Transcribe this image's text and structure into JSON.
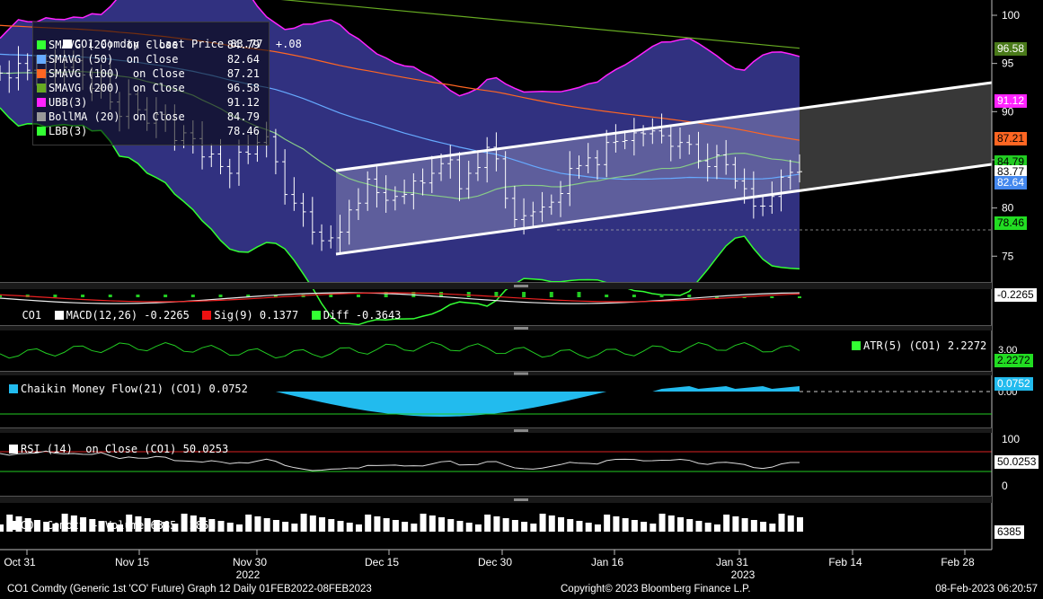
{
  "legend": {
    "title_swatch_color": "#ffffff",
    "title": "CO1 Comdty - Last Price",
    "title_value": "83.77",
    "title_change": "+.08",
    "rows": [
      {
        "label": "SMAVG (20)  on Close",
        "value": "84.79",
        "color": "#33ff33"
      },
      {
        "label": "SMAVG (50)  on Close",
        "value": "82.64",
        "color": "#66aaff"
      },
      {
        "label": "SMAVG (100)  on Close",
        "value": "87.21",
        "color": "#ff6622"
      },
      {
        "label": "SMAVG (200)  on Close",
        "value": "96.58",
        "color": "#66aa22"
      },
      {
        "label": "UBB(3)",
        "value": "91.12",
        "color": "#ff22ff"
      },
      {
        "label": "BollMA (20)  on Close",
        "value": "84.79",
        "color": "#999999"
      },
      {
        "label": "LBB(3)",
        "value": "78.46",
        "color": "#33ff33"
      }
    ]
  },
  "price_tags": [
    {
      "text": "96.58",
      "value": 96.58,
      "bg": "#4a7a1a",
      "fg": "#ffffff"
    },
    {
      "text": "91.12",
      "value": 91.12,
      "bg": "#ff22ff",
      "fg": "#ffffff"
    },
    {
      "text": "87.21",
      "value": 87.21,
      "bg": "#ff6622",
      "fg": "#000000"
    },
    {
      "text": "84.79",
      "value": 84.79,
      "bg": "#22cc22",
      "fg": "#000000"
    },
    {
      "text": "83.77",
      "value": 83.77,
      "bg": "#ffffff",
      "fg": "#000000"
    },
    {
      "text": "82.64",
      "value": 82.64,
      "bg": "#4488ee",
      "fg": "#ffffff"
    },
    {
      "text": "78.46",
      "value": 78.46,
      "bg": "#22dd22",
      "fg": "#000000"
    }
  ],
  "panes": {
    "macd": {
      "label": "CO1",
      "macd": "MACD(12,26) -0.2265",
      "sig": "Sig(9) 0.1377",
      "diff": "Diff -0.3643",
      "tag": "-0.2265"
    },
    "atr": {
      "label": "ATR(5) (CO1) 2.2272",
      "tag": "2.2272",
      "tick": "3.00"
    },
    "cmf": {
      "label": "Chaikin Money Flow(21) (CO1) 0.0752",
      "tag": "0.0752",
      "tick": "0.00"
    },
    "rsi": {
      "label": "RSI (14)  on Close (CO1) 50.0253",
      "tag": "50.0253"
    },
    "volume": {
      "label": "CO1 Comdty - Volume 6385 .285M",
      "tag": "6385"
    }
  },
  "footer": {
    "left": "CO1 Comdty (Generic 1st 'CO' Future) Graph 12  Daily 01FEB2022-08FEB2023",
    "center": "Copyright© 2023 Bloomberg Finance L.P.",
    "right": "08-Feb-2023 06:20:57"
  },
  "chart_data": {
    "type": "line",
    "title": "CO1 Comdty - Last Price",
    "x_tick_labels": [
      "Oct 31",
      "Nov 15",
      "Nov 30",
      "Dec 15",
      "Dec 30",
      "Jan 16",
      "Jan 31",
      "Feb 14",
      "Feb 28"
    ],
    "x_year_labels": [
      "2022",
      "2023"
    ],
    "y_tick_labels": [
      "100",
      "95",
      "90",
      "85",
      "80",
      "75"
    ],
    "ylim": [
      72,
      101
    ],
    "rsi_ticks": [
      "100",
      "50",
      "0"
    ],
    "close": [
      94.0,
      93.5,
      95.0,
      94.3,
      93.5,
      95.2,
      94.0,
      94.6,
      95.3,
      93.8,
      92.4,
      93.6,
      91.0,
      89.5,
      91.8,
      90.2,
      88.8,
      89.7,
      89.2,
      87.0,
      87.8,
      87.2,
      85.3,
      85.6,
      84.3,
      83.6,
      85.8,
      85.6,
      86.8,
      87.4,
      84.8,
      81.4,
      80.5,
      79.6,
      77.5,
      76.6,
      76.9,
      77.5,
      79.8,
      80.5,
      83.0,
      81.6,
      80.8,
      81.2,
      81.4,
      82.8,
      82.6,
      83.6,
      84.6,
      85.0,
      82.0,
      83.6,
      84.2,
      86.3,
      85.1,
      81.0,
      78.8,
      79.2,
      79.6,
      80.1,
      80.6,
      81.5,
      84.1,
      84.4,
      85.2,
      84.5,
      86.8,
      86.9,
      87.0,
      87.8,
      87.7,
      88.0,
      87.5,
      86.4,
      86.8,
      86.6,
      84.9,
      84.3,
      85.5,
      84.5,
      82.8,
      82.0,
      80.2,
      80.2,
      81.2,
      83.2,
      83.7,
      83.77
    ],
    "series": [
      {
        "name": "SMAVG (20)  on Close",
        "value": 84.79
      },
      {
        "name": "SMAVG (50)  on Close",
        "value": 82.64
      },
      {
        "name": "SMAVG (100)  on Close",
        "value": 87.21
      },
      {
        "name": "SMAVG (200)  on Close",
        "value": 96.58
      },
      {
        "name": "UBB(3)",
        "value": 91.12
      },
      {
        "name": "BollMA (20)  on Close",
        "value": 84.79
      },
      {
        "name": "LBB(3)",
        "value": 78.46
      }
    ],
    "last_price": 83.77,
    "change": 0.08
  }
}
